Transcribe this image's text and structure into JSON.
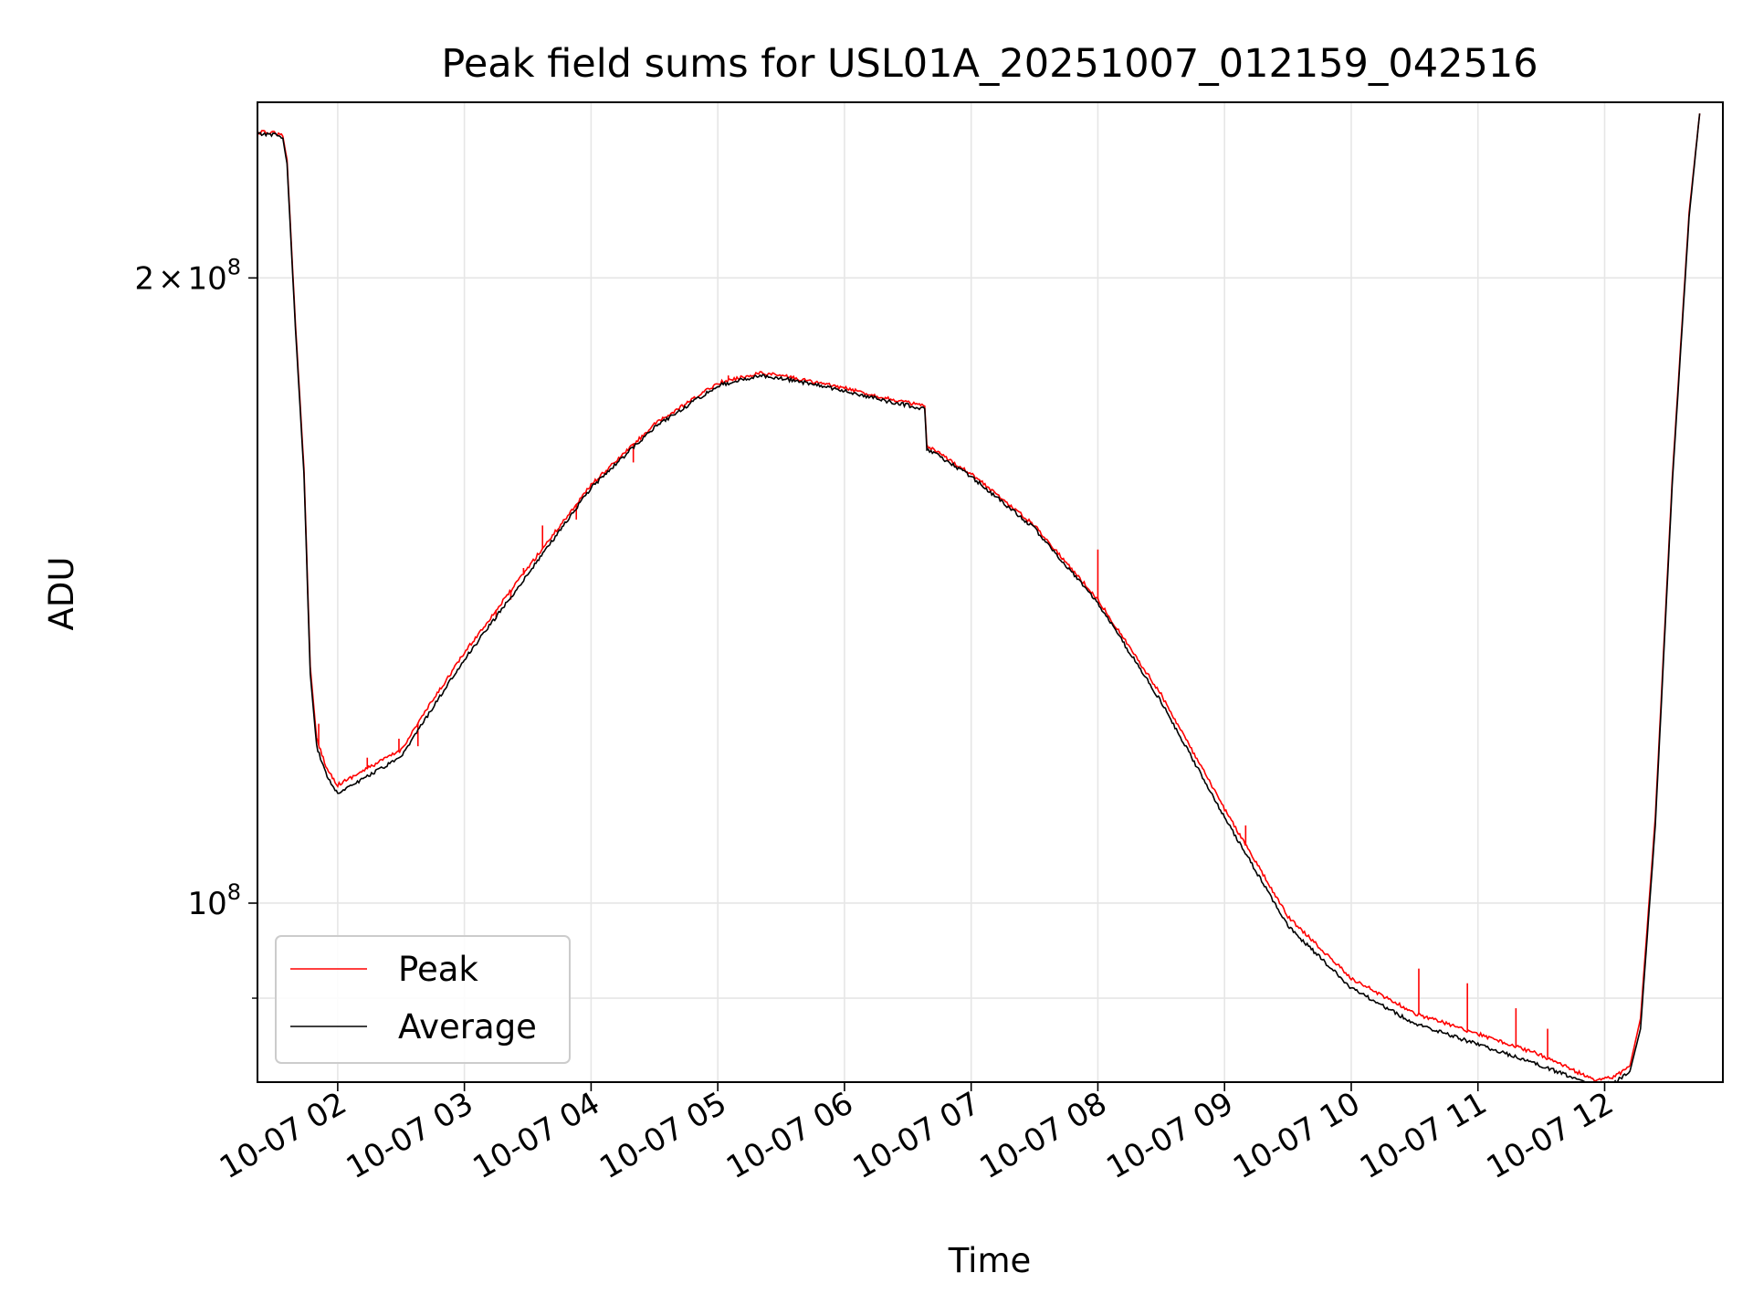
{
  "chart_data": {
    "type": "line",
    "title": "Peak field sums for USL01A_20251007_012159_042516",
    "xlabel": "Time",
    "ylabel": "ADU",
    "yscale": "log",
    "grid": true,
    "legend_position": "lower-left",
    "xlim": [
      "2025-10-07T01:22",
      "2025-10-07T12:56"
    ],
    "ylim": [
      82000000,
      243000000
    ],
    "x_ticks": [
      {
        "value": "2025-10-07T02:00",
        "label": "10-07 02"
      },
      {
        "value": "2025-10-07T03:00",
        "label": "10-07 03"
      },
      {
        "value": "2025-10-07T04:00",
        "label": "10-07 04"
      },
      {
        "value": "2025-10-07T05:00",
        "label": "10-07 05"
      },
      {
        "value": "2025-10-07T06:00",
        "label": "10-07 06"
      },
      {
        "value": "2025-10-07T07:00",
        "label": "10-07 07"
      },
      {
        "value": "2025-10-07T08:00",
        "label": "10-07 08"
      },
      {
        "value": "2025-10-07T09:00",
        "label": "10-07 09"
      },
      {
        "value": "2025-10-07T10:00",
        "label": "10-07 10"
      },
      {
        "value": "2025-10-07T11:00",
        "label": "10-07 11"
      },
      {
        "value": "2025-10-07T12:00",
        "label": "10-07 12"
      }
    ],
    "y_ticks": [
      {
        "value": 200000000,
        "mantissa": "2",
        "times": "×",
        "base": "10",
        "exp": "8"
      },
      {
        "value": 100000000,
        "mantissa": "",
        "times": "",
        "base": "10",
        "exp": "8"
      }
    ],
    "y_minor_ticks": [
      90000000
    ],
    "series": [
      {
        "name": "Peak",
        "color": "#ff0000",
        "x": [
          "2025-10-07T01:22",
          "2025-10-07T01:30",
          "2025-10-07T01:34",
          "2025-10-07T01:36",
          "2025-10-07T01:40",
          "2025-10-07T01:44",
          "2025-10-07T01:47",
          "2025-10-07T01:50",
          "2025-10-07T01:55",
          "2025-10-07T02:00",
          "2025-10-07T02:10",
          "2025-10-07T02:20",
          "2025-10-07T02:30",
          "2025-10-07T02:40",
          "2025-10-07T03:00",
          "2025-10-07T03:30",
          "2025-10-07T04:00",
          "2025-10-07T04:30",
          "2025-10-07T05:00",
          "2025-10-07T05:20",
          "2025-10-07T05:30",
          "2025-10-07T06:00",
          "2025-10-07T06:20",
          "2025-10-07T06:38",
          "2025-10-07T06:39",
          "2025-10-07T07:00",
          "2025-10-07T07:30",
          "2025-10-07T08:00",
          "2025-10-07T08:30",
          "2025-10-07T09:00",
          "2025-10-07T09:30",
          "2025-10-07T10:00",
          "2025-10-07T10:30",
          "2025-10-07T11:00",
          "2025-10-07T11:30",
          "2025-10-07T11:55",
          "2025-10-07T12:05",
          "2025-10-07T12:12",
          "2025-10-07T12:17",
          "2025-10-07T12:24",
          "2025-10-07T12:32",
          "2025-10-07T12:40",
          "2025-10-07T12:45"
        ],
        "y": [
          235000000,
          235000000,
          234000000,
          228000000,
          190000000,
          162000000,
          130000000,
          120000000,
          116000000,
          114000000,
          115500000,
          117000000,
          118500000,
          123000000,
          132000000,
          145000000,
          159000000,
          170000000,
          178000000,
          180000000,
          179500000,
          177000000,
          175000000,
          173500000,
          166000000,
          161000000,
          152000000,
          140000000,
          126000000,
          111000000,
          98500000,
          92000000,
          88500000,
          86500000,
          84500000,
          82200000,
          82500000,
          83500000,
          88000000,
          110000000,
          160000000,
          215000000,
          240000000
        ],
        "spikes": [
          {
            "x": "2025-10-07T01:51",
            "y": 122000000
          },
          {
            "x": "2025-10-07T02:14",
            "y": 117500000
          },
          {
            "x": "2025-10-07T02:29",
            "y": 120000000
          },
          {
            "x": "2025-10-07T02:38",
            "y": 119000000
          },
          {
            "x": "2025-10-07T03:05",
            "y": 134000000
          },
          {
            "x": "2025-10-07T03:15",
            "y": 137000000
          },
          {
            "x": "2025-10-07T03:22",
            "y": 140000000
          },
          {
            "x": "2025-10-07T03:28",
            "y": 145000000
          },
          {
            "x": "2025-10-07T03:37",
            "y": 152000000
          },
          {
            "x": "2025-10-07T03:53",
            "y": 153000000
          },
          {
            "x": "2025-10-07T04:20",
            "y": 163000000
          },
          {
            "x": "2025-10-07T05:05",
            "y": 179500000
          },
          {
            "x": "2025-10-07T06:45",
            "y": 165000000
          },
          {
            "x": "2025-10-07T07:18",
            "y": 155000000
          },
          {
            "x": "2025-10-07T08:00",
            "y": 148000000
          },
          {
            "x": "2025-10-07T09:10",
            "y": 109000000
          },
          {
            "x": "2025-10-07T10:32",
            "y": 93000000
          },
          {
            "x": "2025-10-07T10:55",
            "y": 91500000
          },
          {
            "x": "2025-10-07T11:18",
            "y": 89000000
          },
          {
            "x": "2025-10-07T11:33",
            "y": 87000000
          }
        ]
      },
      {
        "name": "Average",
        "color": "#000000",
        "x": [
          "2025-10-07T01:22",
          "2025-10-07T01:30",
          "2025-10-07T01:34",
          "2025-10-07T01:36",
          "2025-10-07T01:40",
          "2025-10-07T01:44",
          "2025-10-07T01:47",
          "2025-10-07T01:50",
          "2025-10-07T01:55",
          "2025-10-07T02:00",
          "2025-10-07T02:10",
          "2025-10-07T02:20",
          "2025-10-07T02:30",
          "2025-10-07T02:40",
          "2025-10-07T03:00",
          "2025-10-07T03:30",
          "2025-10-07T04:00",
          "2025-10-07T04:30",
          "2025-10-07T05:00",
          "2025-10-07T05:20",
          "2025-10-07T05:30",
          "2025-10-07T06:00",
          "2025-10-07T06:20",
          "2025-10-07T06:38",
          "2025-10-07T06:39",
          "2025-10-07T07:00",
          "2025-10-07T07:30",
          "2025-10-07T08:00",
          "2025-10-07T08:30",
          "2025-10-07T09:00",
          "2025-10-07T09:30",
          "2025-10-07T10:00",
          "2025-10-07T10:30",
          "2025-10-07T11:00",
          "2025-10-07T11:30",
          "2025-10-07T11:55",
          "2025-10-07T12:05",
          "2025-10-07T12:12",
          "2025-10-07T12:17",
          "2025-10-07T12:24",
          "2025-10-07T12:32",
          "2025-10-07T12:40",
          "2025-10-07T12:45"
        ],
        "y": [
          234500000,
          234500000,
          233500000,
          227000000,
          189000000,
          161000000,
          129000000,
          119000000,
          115000000,
          113000000,
          114500000,
          116000000,
          117500000,
          122000000,
          131000000,
          144000000,
          158500000,
          169500000,
          177500000,
          179500000,
          179000000,
          176500000,
          174500000,
          173000000,
          165500000,
          160500000,
          151500000,
          139500000,
          125000000,
          110000000,
          97500000,
          91000000,
          87500000,
          85500000,
          83500000,
          81700000,
          82000000,
          83000000,
          87000000,
          109000000,
          159000000,
          214000000,
          240000000
        ]
      }
    ]
  }
}
